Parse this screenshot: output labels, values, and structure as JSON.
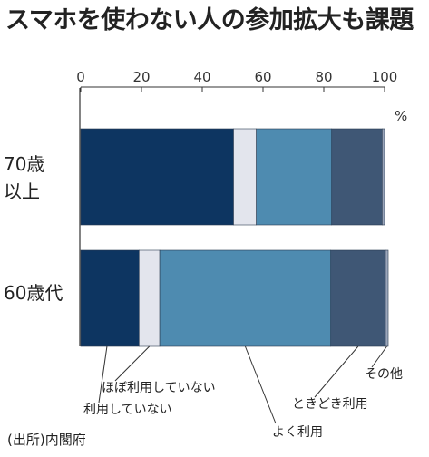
{
  "chart_data": {
    "type": "bar",
    "orientation": "horizontal",
    "stacked": true,
    "title": "スマホを使わない人の参加拡大も課題",
    "unit": "%",
    "xlim": [
      0,
      100
    ],
    "ticks": [
      "0",
      "20",
      "40",
      "60",
      "80",
      "100"
    ],
    "categories": [
      {
        "line1": "70歳",
        "line2": "以上"
      },
      {
        "line1": "60歳代",
        "line2": ""
      }
    ],
    "series": [
      {
        "name": "利用していない",
        "color": "#0d3561",
        "values": [
          50.3,
          19.2
        ]
      },
      {
        "name": "ほぼ利用していない",
        "color": "#e3e5ed",
        "values": [
          7.5,
          6.8
        ]
      },
      {
        "name": "よく利用",
        "color": "#4e8bb0",
        "values": [
          24.8,
          56.3
        ]
      },
      {
        "name": "ときどき利用",
        "color": "#3f5775",
        "values": [
          16.6,
          18.0
        ]
      },
      {
        "name": "その他",
        "color": "#9aa6bb",
        "values": [
          0.8,
          0.9
        ]
      }
    ],
    "source": "(出所)内閣府"
  }
}
